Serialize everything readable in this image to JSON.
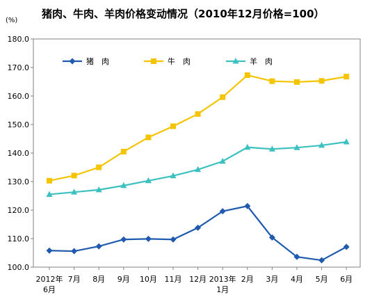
{
  "chart_data": {
    "type": "line",
    "title": "猪肉、牛肉、羊肉价格变动情况（2010年12月价格=100）",
    "unit_label": "(%)",
    "ylim": [
      100,
      180
    ],
    "yticks": [
      "100.0",
      "110.0",
      "120.0",
      "130.0",
      "140.0",
      "150.0",
      "160.0",
      "170.0",
      "180.0"
    ],
    "categories": [
      [
        "2012年",
        "6月"
      ],
      [
        "7月"
      ],
      [
        "8月"
      ],
      [
        "9月"
      ],
      [
        "10月"
      ],
      [
        "11月"
      ],
      [
        "12月"
      ],
      [
        "2013年",
        "1月"
      ],
      [
        "2月"
      ],
      [
        "3月"
      ],
      [
        "4月"
      ],
      [
        "5月"
      ],
      [
        "6月"
      ]
    ],
    "series": [
      {
        "name": "猪　肉",
        "color": "#1F5AAE",
        "marker": "diamond",
        "values": [
          105.8,
          105.6,
          107.3,
          109.7,
          109.9,
          109.7,
          113.8,
          119.6,
          121.4,
          110.4,
          103.6,
          102.4,
          107.1
        ]
      },
      {
        "name": "牛　肉",
        "color": "#F5C400",
        "marker": "square",
        "values": [
          130.3,
          132.1,
          135.0,
          140.5,
          145.5,
          149.4,
          153.7,
          159.6,
          167.3,
          165.2,
          164.9,
          165.3,
          166.8
        ]
      },
      {
        "name": "羊　肉",
        "color": "#3CC0C0",
        "marker": "triangle",
        "values": [
          125.5,
          126.3,
          127.1,
          128.6,
          130.3,
          132.0,
          134.2,
          137.1,
          142.0,
          141.4,
          141.9,
          142.7,
          143.9
        ]
      }
    ],
    "legend_position": "top",
    "grid": false
  }
}
